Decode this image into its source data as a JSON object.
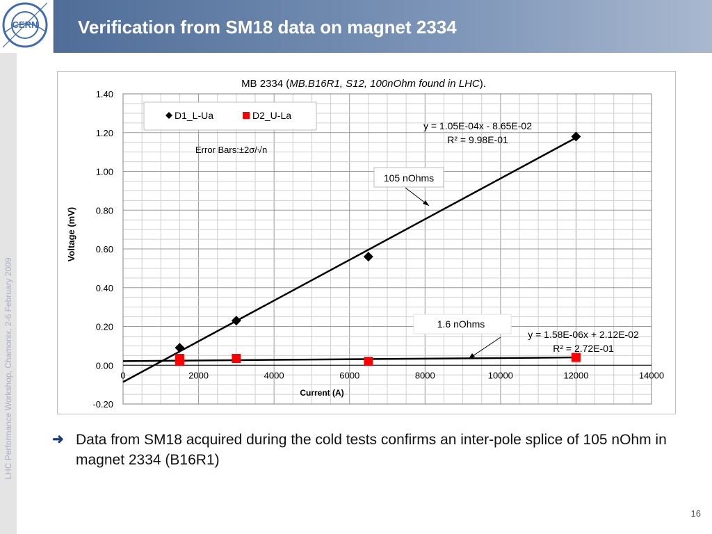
{
  "slide": {
    "title": "Verification from SM18 data on magnet  2334",
    "side_text": "LHC Performance Workshop, Chamonix, 2-6 February 2009",
    "logo_text": "CERN",
    "bullet": "Data from SM18 acquired during the cold tests confirms an inter-pole splice of 105 nOhm in magnet 2334 (B16R1)",
    "page_number": "16",
    "colors": {
      "header": "#5874a0",
      "series1": "#000000",
      "series2": "#ff0000",
      "bullet_arrow": "#1f3d7a"
    }
  },
  "chart_data": {
    "type": "scatter",
    "title_prefix": "MB  2334  (",
    "title_italic": "MB.B16R1, S12, 100nOhm found in LHC",
    "title_suffix": ").",
    "xlabel": "Current (A)",
    "ylabel": "Voltage (mV)",
    "xlim": [
      0,
      14000
    ],
    "ylim": [
      -0.2,
      1.4
    ],
    "x_ticks": [
      "0",
      "2000",
      "4000",
      "6000",
      "8000",
      "10000",
      "12000",
      "14000"
    ],
    "y_ticks": [
      "-0.20",
      "0.00",
      "0.20",
      "0.40",
      "0.60",
      "0.80",
      "1.00",
      "1.20",
      "1.40"
    ],
    "grid": true,
    "legend_position": "top-left",
    "series": [
      {
        "name": "D1_L-Ua",
        "marker": "diamond",
        "color": "#000000",
        "points": [
          [
            1500,
            0.09
          ],
          [
            3000,
            0.23
          ],
          [
            6500,
            0.56
          ],
          [
            12000,
            1.18
          ]
        ],
        "trendline": {
          "slope": 0.000105,
          "intercept": -0.0865,
          "x_range": [
            0,
            12000
          ]
        }
      },
      {
        "name": "D2_U-La",
        "marker": "square",
        "color": "#ff0000",
        "points": [
          [
            1500,
            0.035
          ],
          [
            1500,
            0.02
          ],
          [
            3000,
            0.035
          ],
          [
            6500,
            0.02
          ],
          [
            12000,
            0.04
          ]
        ],
        "trendline": {
          "slope": 1.58e-06,
          "intercept": 0.0212,
          "x_range": [
            0,
            12000
          ]
        }
      }
    ],
    "annotations": {
      "error_bars": "Error Bars:±2σ/√n",
      "label_105": "105 nOhms",
      "label_16": "1.6 nOhms",
      "eq1_line1": "y = 1.05E-04x - 8.65E-02",
      "eq1_line2": "R² = 9.98E-01",
      "eq2_line1": "y = 1.58E-06x + 2.12E-02",
      "eq2_line2": "R² = 2.72E-01"
    }
  }
}
